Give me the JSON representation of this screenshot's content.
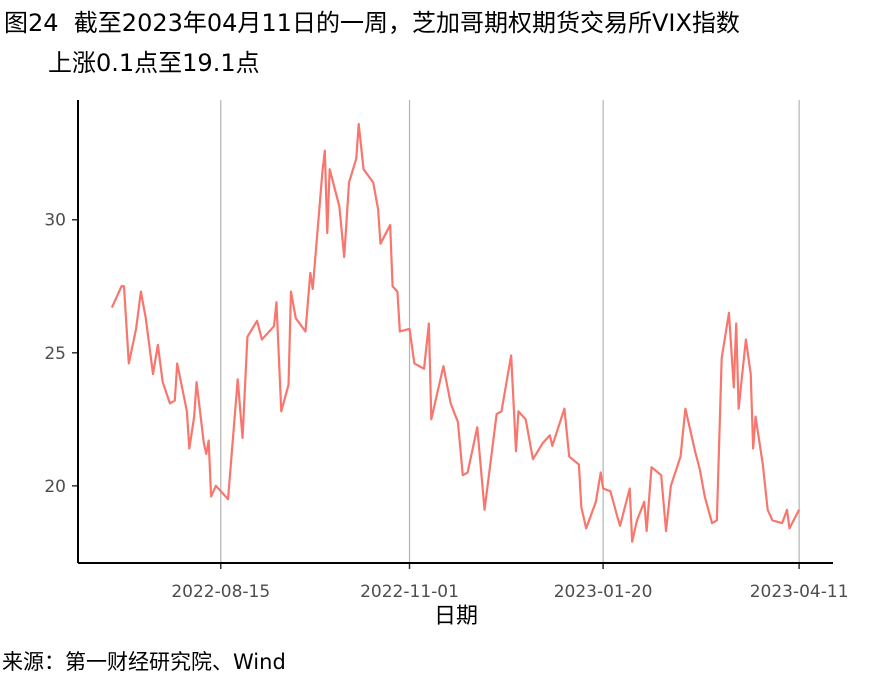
{
  "chart_data": {
    "type": "line",
    "title": "图24  截至2023年04月11日的一周，芝加哥期权期货交易所VIX指数",
    "subtitle": "上涨0.1点至19.1点",
    "x_label": "日期",
    "source": "来源：第一财经研究院、Wind",
    "x": [
      "2022-07-01",
      "2022-07-05",
      "2022-07-06",
      "2022-07-08",
      "2022-07-11",
      "2022-07-13",
      "2022-07-15",
      "2022-07-18",
      "2022-07-20",
      "2022-07-22",
      "2022-07-25",
      "2022-07-27",
      "2022-07-28",
      "2022-08-01",
      "2022-08-02",
      "2022-08-04",
      "2022-08-05",
      "2022-08-08",
      "2022-08-09",
      "2022-08-10",
      "2022-08-11",
      "2022-08-13",
      "2022-08-15",
      "2022-08-18",
      "2022-08-22",
      "2022-08-24",
      "2022-08-26",
      "2022-08-30",
      "2022-09-01",
      "2022-09-06",
      "2022-09-07",
      "2022-09-09",
      "2022-09-12",
      "2022-09-13",
      "2022-09-15",
      "2022-09-19",
      "2022-09-21",
      "2022-09-22",
      "2022-09-26",
      "2022-09-27",
      "2022-09-28",
      "2022-09-29",
      "2022-10-03",
      "2022-10-05",
      "2022-10-07",
      "2022-10-10",
      "2022-10-11",
      "2022-10-13",
      "2022-10-17",
      "2022-10-19",
      "2022-10-20",
      "2022-10-24",
      "2022-10-25",
      "2022-10-27",
      "2022-10-28",
      "2022-11-01",
      "2022-11-03",
      "2022-11-07",
      "2022-11-09",
      "2022-11-10",
      "2022-11-15",
      "2022-11-18",
      "2022-11-21",
      "2022-11-23",
      "2022-11-25",
      "2022-11-29",
      "2022-12-02",
      "2022-12-07",
      "2022-12-09",
      "2022-12-13",
      "2022-12-15",
      "2022-12-16",
      "2022-12-19",
      "2022-12-22",
      "2022-12-26",
      "2022-12-29",
      "2022-12-30",
      "2023-01-04",
      "2023-01-06",
      "2023-01-10",
      "2023-01-11",
      "2023-01-13",
      "2023-01-17",
      "2023-01-19",
      "2023-01-20",
      "2023-01-23",
      "2023-01-26",
      "2023-01-27",
      "2023-01-31",
      "2023-02-01",
      "2023-02-03",
      "2023-02-06",
      "2023-02-07",
      "2023-02-09",
      "2023-02-13",
      "2023-02-15",
      "2023-02-17",
      "2023-02-21",
      "2023-02-23",
      "2023-02-27",
      "2023-03-01",
      "2023-03-03",
      "2023-03-06",
      "2023-03-08",
      "2023-03-10",
      "2023-03-13",
      "2023-03-15",
      "2023-03-16",
      "2023-03-17",
      "2023-03-20",
      "2023-03-22",
      "2023-03-23",
      "2023-03-24",
      "2023-03-27",
      "2023-03-29",
      "2023-03-31",
      "2023-04-04",
      "2023-04-06",
      "2023-04-07",
      "2023-04-11"
    ],
    "series": [
      {
        "name": "VIX",
        "color": "#f8766d",
        "values": [
          26.7,
          27.5,
          27.5,
          24.6,
          25.9,
          27.3,
          26.3,
          24.2,
          25.3,
          23.9,
          23.1,
          23.2,
          24.6,
          22.8,
          21.4,
          22.6,
          23.9,
          21.6,
          21.2,
          21.7,
          19.6,
          20.0,
          19.8,
          19.5,
          24.0,
          21.8,
          25.6,
          26.2,
          25.5,
          26.0,
          26.9,
          22.8,
          23.8,
          27.3,
          26.3,
          25.8,
          28.0,
          27.4,
          31.8,
          32.6,
          29.5,
          31.9,
          30.5,
          28.6,
          31.4,
          32.3,
          33.6,
          31.9,
          31.4,
          30.4,
          29.1,
          29.8,
          27.5,
          27.3,
          25.8,
          25.9,
          24.6,
          24.4,
          26.1,
          22.5,
          24.5,
          23.1,
          22.4,
          20.4,
          20.5,
          22.2,
          19.1,
          22.7,
          22.8,
          24.9,
          21.3,
          22.8,
          22.5,
          21.0,
          21.6,
          21.9,
          21.5,
          22.9,
          21.1,
          20.8,
          19.2,
          18.4,
          19.4,
          20.5,
          19.9,
          19.8,
          18.8,
          18.5,
          19.9,
          17.9,
          18.7,
          19.4,
          18.3,
          20.7,
          20.4,
          18.3,
          20.0,
          21.1,
          22.9,
          21.3,
          20.6,
          19.6,
          18.6,
          18.7,
          24.8,
          26.5,
          23.7,
          26.1,
          22.9,
          25.5,
          24.2,
          21.4,
          22.6,
          20.8,
          19.1,
          18.7,
          18.6,
          19.1,
          18.4,
          19.1
        ]
      }
    ],
    "xlim": [
      "2022-06-17",
      "2023-04-25"
    ],
    "xticks": [
      "2022-08-15",
      "2022-11-01",
      "2023-01-20",
      "2023-04-11"
    ],
    "ylim": [
      17.1,
      34.5
    ],
    "yticks": [
      20,
      25,
      30
    ],
    "grid": "x"
  }
}
